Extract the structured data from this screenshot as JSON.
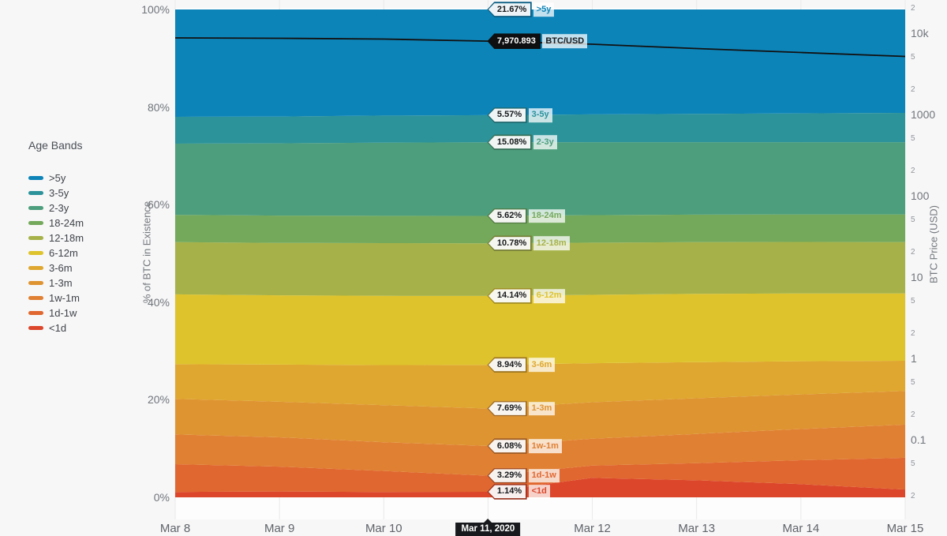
{
  "legend": {
    "title": "Age Bands"
  },
  "axes": {
    "left_title": "% of BTC in Existence",
    "right_title": "BTC Price (USD)",
    "left_ticks": [
      {
        "label": "100%",
        "pct": 100
      },
      {
        "label": "80%",
        "pct": 80
      },
      {
        "label": "60%",
        "pct": 60
      },
      {
        "label": "40%",
        "pct": 40
      },
      {
        "label": "20%",
        "pct": 20
      },
      {
        "label": "0%",
        "pct": 0
      }
    ],
    "right_ticks": [
      {
        "label": "2",
        "value": 20000,
        "major": false
      },
      {
        "label": "10k",
        "value": 10000,
        "major": true
      },
      {
        "label": "5",
        "value": 5000,
        "major": false
      },
      {
        "label": "2",
        "value": 2000,
        "major": false
      },
      {
        "label": "1000",
        "value": 1000,
        "major": true
      },
      {
        "label": "5",
        "value": 500,
        "major": false
      },
      {
        "label": "2",
        "value": 200,
        "major": false
      },
      {
        "label": "100",
        "value": 100,
        "major": true
      },
      {
        "label": "5",
        "value": 50,
        "major": false
      },
      {
        "label": "2",
        "value": 20,
        "major": false
      },
      {
        "label": "10",
        "value": 10,
        "major": true
      },
      {
        "label": "5",
        "value": 5,
        "major": false
      },
      {
        "label": "2",
        "value": 2,
        "major": false
      },
      {
        "label": "1",
        "value": 1,
        "major": true
      },
      {
        "label": "5",
        "value": 0.5,
        "major": false
      },
      {
        "label": "2",
        "value": 0.2,
        "major": false
      },
      {
        "label": "0.1",
        "value": 0.1,
        "major": true
      },
      {
        "label": "5",
        "value": 0.05,
        "major": false
      },
      {
        "label": "2",
        "value": 0.02,
        "major": false
      }
    ]
  },
  "hover": {
    "date_index": 3,
    "date_label": "Mar 11, 2020",
    "price_value": "7,970.893",
    "price_unit": "BTC/USD"
  },
  "chart_data": {
    "type": "area",
    "stacked": true,
    "x": [
      "Mar 8",
      "Mar 9",
      "Mar 10",
      "Mar 11, 2020",
      "Mar 12",
      "Mar 13",
      "Mar 14",
      "Mar 15"
    ],
    "ylabel_left": "% of BTC in Existence",
    "ylabel_right": "BTC Price (USD)",
    "ylim_left": [
      0,
      100
    ],
    "right_axis_scale": "log",
    "grid": "vertical",
    "legend_position": "left",
    "series": [
      {
        "name": ">5y",
        "color": "#0d84b8",
        "dark": "#0a5d82",
        "hover_label": "21.67%",
        "values": [
          22.0,
          21.95,
          21.75,
          21.67,
          21.5,
          21.4,
          21.3,
          21.2
        ]
      },
      {
        "name": "3-5y",
        "color": "#2d939a",
        "dark": "#20686d",
        "hover_label": "5.57%",
        "values": [
          5.5,
          5.5,
          5.55,
          5.57,
          5.7,
          5.8,
          5.9,
          6.0
        ]
      },
      {
        "name": "2-3y",
        "color": "#4d9e7d",
        "dark": "#367058",
        "hover_label": "15.08%",
        "values": [
          14.6,
          14.8,
          15.0,
          15.08,
          14.95,
          14.85,
          14.8,
          14.8
        ]
      },
      {
        "name": "18-24m",
        "color": "#74a95c",
        "dark": "#527841",
        "hover_label": "5.62%",
        "values": [
          5.6,
          5.6,
          5.6,
          5.62,
          5.65,
          5.65,
          5.65,
          5.7
        ]
      },
      {
        "name": "12-18m",
        "color": "#a6b249",
        "dark": "#757e33",
        "hover_label": "10.78%",
        "values": [
          10.7,
          10.75,
          10.8,
          10.78,
          10.7,
          10.6,
          10.55,
          10.5
        ]
      },
      {
        "name": "6-12m",
        "color": "#dfc32d",
        "dark": "#9d891f",
        "hover_label": "14.14%",
        "values": [
          14.3,
          14.2,
          14.2,
          14.14,
          14.0,
          14.0,
          13.9,
          13.8
        ]
      },
      {
        "name": "3-6m",
        "color": "#dfa72f",
        "dark": "#9d7521",
        "hover_label": "8.94%",
        "values": [
          7.1,
          7.6,
          8.2,
          8.94,
          8.0,
          7.4,
          6.8,
          6.2
        ]
      },
      {
        "name": "1-3m",
        "color": "#df9432",
        "dark": "#9d6823",
        "hover_label": "7.69%",
        "values": [
          7.3,
          7.3,
          7.6,
          7.69,
          7.5,
          7.3,
          7.1,
          6.9
        ]
      },
      {
        "name": "1w-1m",
        "color": "#e08033",
        "dark": "#9d5a23",
        "hover_label": "6.08%",
        "values": [
          6.1,
          6.0,
          5.9,
          6.08,
          5.5,
          6.0,
          6.4,
          6.8
        ]
      },
      {
        "name": "1d-1w",
        "color": "#e0672f",
        "dark": "#9d4821",
        "hover_label": "3.29%",
        "values": [
          5.7,
          5.1,
          4.3,
          3.29,
          2.5,
          3.5,
          4.9,
          6.5
        ]
      },
      {
        "name": "<1d",
        "color": "#dc472b",
        "dark": "#9a311e",
        "hover_label": "1.14%",
        "values": [
          1.1,
          1.2,
          1.1,
          1.14,
          4.0,
          3.5,
          2.7,
          1.6
        ]
      }
    ],
    "price_series": {
      "name": "BTC/USD",
      "color": "#111111",
      "values": [
        8750,
        8650,
        8450,
        7971,
        7310,
        6470,
        5780,
        5170
      ]
    }
  }
}
